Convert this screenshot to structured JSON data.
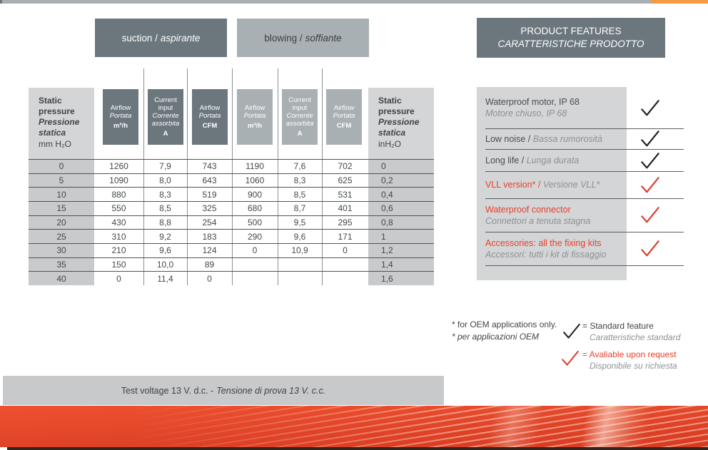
{
  "tabs": {
    "suction_en": "suction /",
    "suction_it": "aspirante",
    "blowing_en": "blowing /",
    "blowing_it": "soffiante"
  },
  "features_header": {
    "line1": "PRODUCT FEATURES",
    "line2": "CARATTERISTICHE PRODOTTO"
  },
  "table": {
    "left_header": {
      "en1": "Static",
      "en2": "pressure",
      "it1": "Pressione",
      "it2": "statica",
      "unit": "mm H₂O"
    },
    "right_header": {
      "en1": "Static",
      "en2": "pressure",
      "it1": "Pressione",
      "it2": "statica",
      "unit": "inH₂O"
    },
    "col_headers": [
      {
        "en": "Airflow",
        "it": "Portata",
        "unit": "m³/h"
      },
      {
        "en": "Current input",
        "it": "Corrente assorbita",
        "unit": "A"
      },
      {
        "en": "Airflow",
        "it": "Portata",
        "unit": "CFM"
      },
      {
        "en": "Airflow",
        "it": "Portata",
        "unit": "m³/h"
      },
      {
        "en": "Current input",
        "it": "Corrente assorbita",
        "unit": "A"
      },
      {
        "en": "Airflow",
        "it": "Portata",
        "unit": "CFM"
      }
    ],
    "rows": [
      [
        "0",
        "1260",
        "7,9",
        "743",
        "1190",
        "7,6",
        "702",
        "0"
      ],
      [
        "5",
        "1090",
        "8,0",
        "643",
        "1060",
        "8,3",
        "625",
        "0,2"
      ],
      [
        "10",
        "880",
        "8,3",
        "519",
        "900",
        "8,5",
        "531",
        "0,4"
      ],
      [
        "15",
        "550",
        "8,5",
        "325",
        "680",
        "8,7",
        "401",
        "0,6"
      ],
      [
        "20",
        "430",
        "8,8",
        "254",
        "500",
        "9,5",
        "295",
        "0,8"
      ],
      [
        "25",
        "310",
        "9,2",
        "183",
        "290",
        "9,6",
        "171",
        "1"
      ],
      [
        "30",
        "210",
        "9,6",
        "124",
        "0",
        "10,9",
        "0",
        "1,2"
      ],
      [
        "35",
        "150",
        "10,0",
        "89",
        "",
        "",
        "",
        "1,4"
      ],
      [
        "40",
        "0",
        "11,4",
        "0",
        "",
        "",
        "",
        "1,6"
      ]
    ]
  },
  "features": {
    "separator": " / ",
    "items": [
      {
        "en": "Waterproof motor, IP 68",
        "it": "Motore chiuso, IP 68",
        "layout": "two-line",
        "style": "standard"
      },
      {
        "en": "Low noise",
        "it": "Bassa rumorosità",
        "layout": "one-line",
        "style": "standard"
      },
      {
        "en": "Long life",
        "it": "Lunga durata",
        "layout": "one-line",
        "style": "standard"
      },
      {
        "en": "VLL version*",
        "it": "Versione VLL*",
        "layout": "one-line",
        "style": "request"
      },
      {
        "en": "Waterproof connector",
        "it": "Connettori a tenuta stagna",
        "layout": "two-line",
        "style": "request"
      },
      {
        "en": "Accessories: all the fixing kits",
        "it": "Accessori: tutti i kit di fissaggio",
        "layout": "two-line",
        "style": "request"
      }
    ]
  },
  "legend": {
    "note_en": "* for OEM applications only.",
    "note_it": "* per applicazioni OEM",
    "standard": {
      "label": "= Standard feature",
      "sub": "Caratteristiche standard"
    },
    "request": {
      "label": "= Avaliable upon request",
      "sub": "Disponibile su richiesta"
    }
  },
  "footer": {
    "en": "Test voltage 13 V. d.c. -",
    "it": "Tensione di prova 13 V. c.c."
  },
  "icons": {
    "standard_check": "check-black-icon",
    "request_check": "check-red-icon"
  },
  "colors": {
    "accent_red": "#e8402c",
    "dark_slate": "#6b777d",
    "light_slate": "#a9b0b3",
    "panel_gray": "#d3d5d6",
    "cell_gray": "#c8cacb",
    "top_strip_gray": "#a9aeb1",
    "top_strip_orange": "#f39a42",
    "band_red": "#e2412a",
    "check_black": "#1d1d1d",
    "check_red": "#dd3a26"
  }
}
